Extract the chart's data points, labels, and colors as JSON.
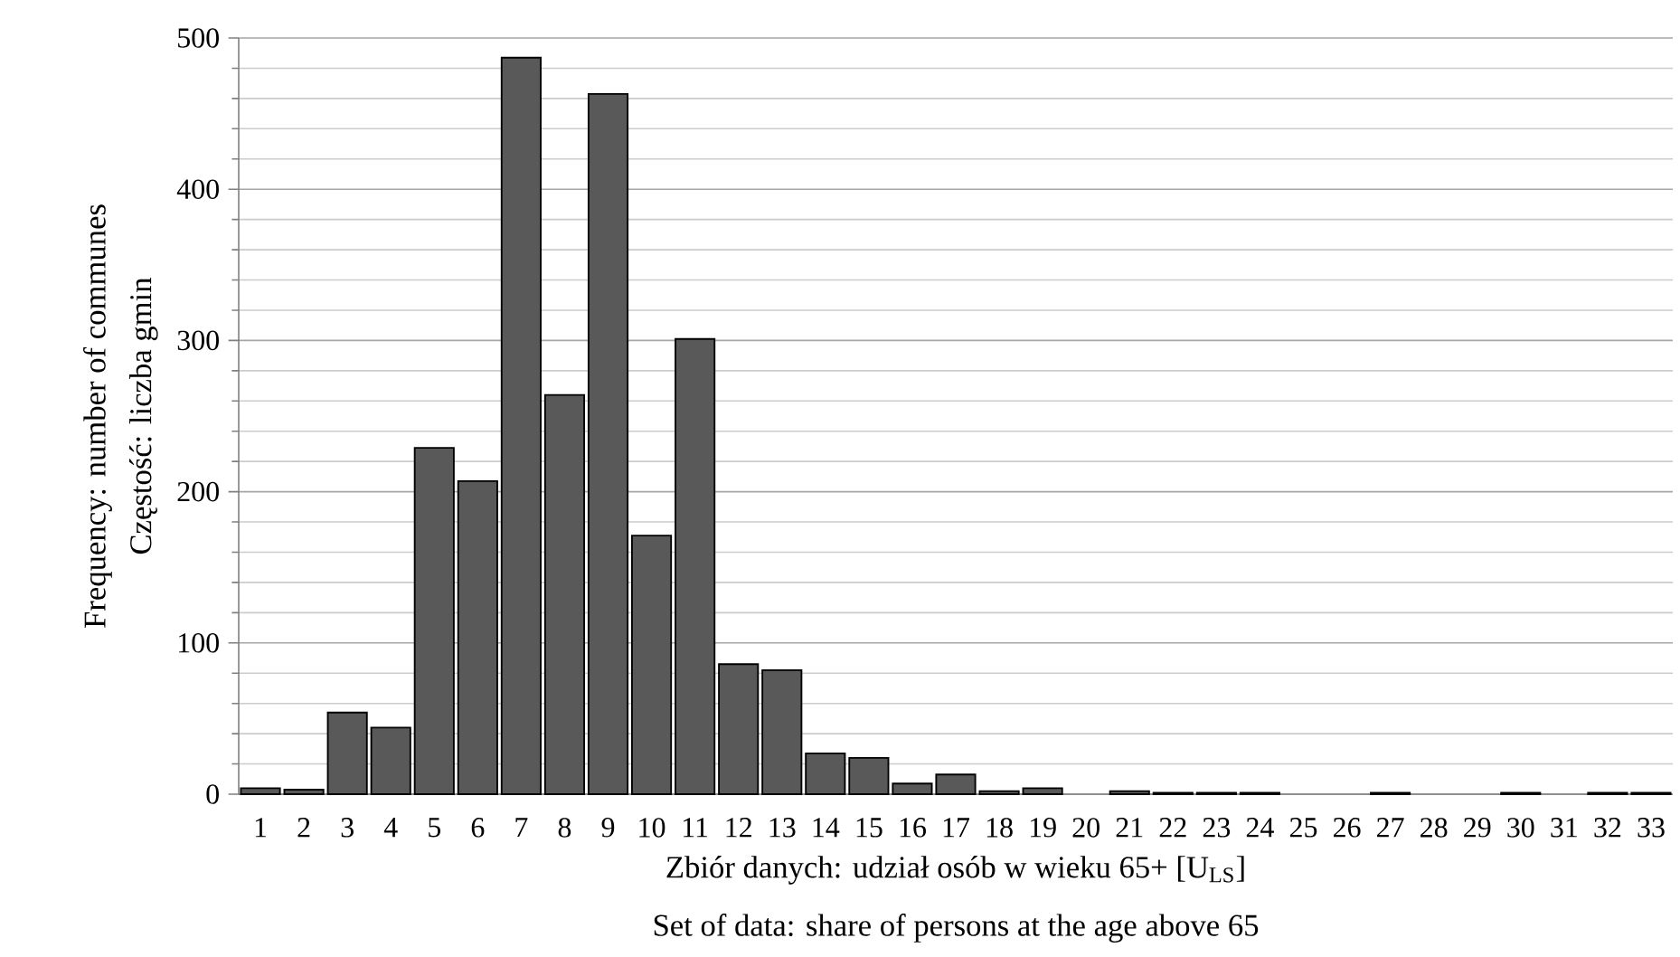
{
  "chart_data": {
    "type": "bar",
    "categories": [
      "1",
      "2",
      "3",
      "4",
      "5",
      "6",
      "7",
      "8",
      "9",
      "10",
      "11",
      "12",
      "13",
      "14",
      "15",
      "16",
      "17",
      "18",
      "19",
      "20",
      "21",
      "22",
      "23",
      "24",
      "25",
      "26",
      "27",
      "28",
      "29",
      "30",
      "31",
      "32",
      "33"
    ],
    "values": [
      4,
      3,
      54,
      44,
      229,
      207,
      487,
      264,
      463,
      171,
      301,
      86,
      82,
      27,
      24,
      7,
      13,
      2,
      4,
      0,
      2,
      1,
      1,
      1,
      0,
      0,
      1,
      0,
      0,
      1,
      0,
      1,
      1
    ],
    "color": "#595959",
    "xlabel": "Zbiór danych: udział osób w wieku 65+ [U$_{LS}$]",
    "ylabel": "Częstość: liczba gmin",
    "annotations": [
      "Set of data: share of persons at the age above 65",
      "Frequency: number of communes"
    ],
    "ylim": [
      0,
      500
    ],
    "yticks": [
      0,
      100,
      200,
      300,
      400,
      500
    ],
    "grid": "y"
  }
}
